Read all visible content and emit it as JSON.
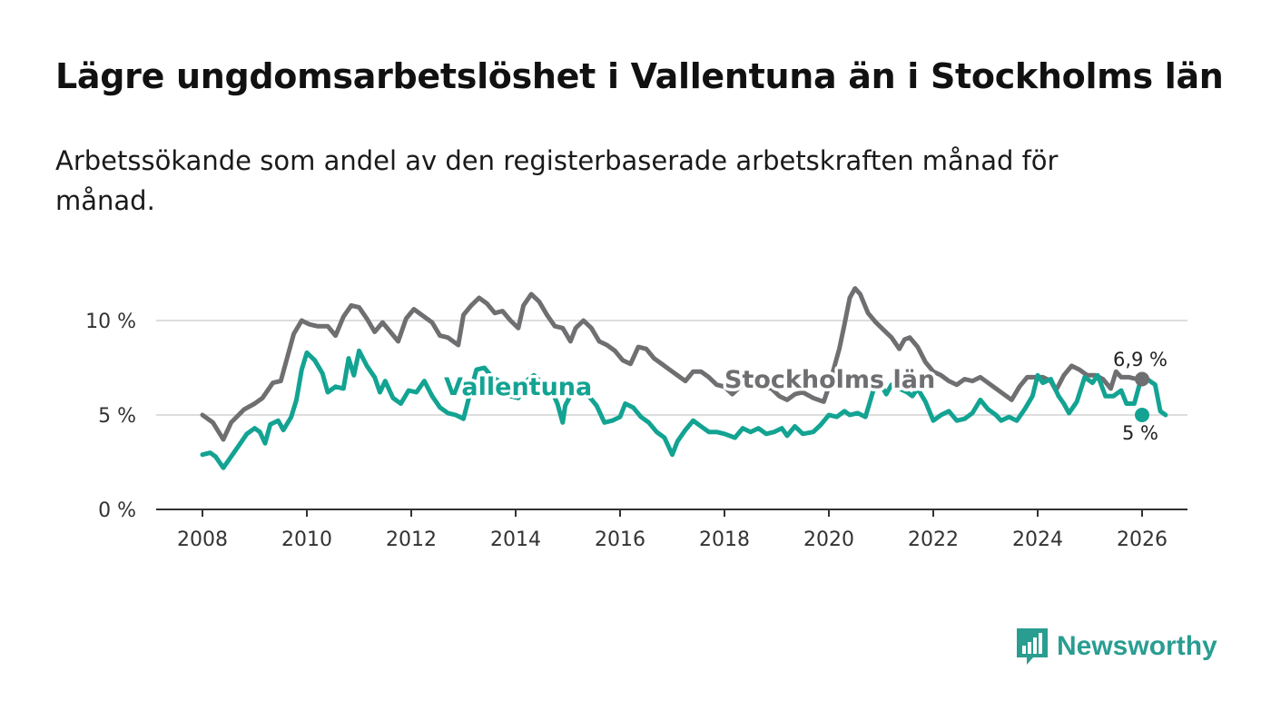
{
  "title": "Lägre ungdomsarbetslöshet i Vallentuna än i Stockholms län",
  "subtitle": "Arbetssökande som andel av den registerbaserade arbetskraften månad för månad.",
  "brand": "Newsworthy",
  "colors": {
    "stockholm": "#6f6e71",
    "vallentuna": "#13a392",
    "grid": "#dddddd",
    "axis": "#333333",
    "brand": "#2a9d91"
  },
  "chart_data": {
    "type": "line",
    "title": "Lägre ungdomsarbetslöshet i Vallentuna än i Stockholms län",
    "xlabel": "",
    "ylabel": "",
    "xlim": [
      2007.2,
      2026.45
    ],
    "ylim": [
      0,
      12
    ],
    "yticks": [
      0,
      5,
      10
    ],
    "ytick_labels": [
      "0 %",
      "5 %",
      "10 %"
    ],
    "xticks": [
      2008,
      2010,
      2012,
      2014,
      2016,
      2018,
      2020,
      2022,
      2024,
      2026
    ],
    "xtick_labels": [
      "2008",
      "2010",
      "2012",
      "2014",
      "2016",
      "2018",
      "2020",
      "2022",
      "2024",
      "2026"
    ],
    "series": [
      {
        "name": "Stockholms län",
        "label": "Stockholms län",
        "end_label": "6,9 %",
        "points": [
          [
            2008.0,
            5.0
          ],
          [
            2008.2,
            4.6
          ],
          [
            2008.4,
            3.7
          ],
          [
            2008.55,
            4.6
          ],
          [
            2008.8,
            5.3
          ],
          [
            2009.0,
            5.6
          ],
          [
            2009.15,
            5.9
          ],
          [
            2009.35,
            6.7
          ],
          [
            2009.5,
            6.8
          ],
          [
            2009.6,
            7.8
          ],
          [
            2009.75,
            9.3
          ],
          [
            2009.9,
            10.0
          ],
          [
            2010.05,
            9.8
          ],
          [
            2010.2,
            9.7
          ],
          [
            2010.4,
            9.7
          ],
          [
            2010.55,
            9.2
          ],
          [
            2010.7,
            10.2
          ],
          [
            2010.85,
            10.8
          ],
          [
            2011.0,
            10.7
          ],
          [
            2011.15,
            10.1
          ],
          [
            2011.3,
            9.4
          ],
          [
            2011.45,
            9.9
          ],
          [
            2011.6,
            9.4
          ],
          [
            2011.75,
            8.9
          ],
          [
            2011.9,
            10.1
          ],
          [
            2012.05,
            10.6
          ],
          [
            2012.2,
            10.3
          ],
          [
            2012.4,
            9.9
          ],
          [
            2012.55,
            9.2
          ],
          [
            2012.7,
            9.1
          ],
          [
            2012.9,
            8.7
          ],
          [
            2013.0,
            10.3
          ],
          [
            2013.15,
            10.8
          ],
          [
            2013.3,
            11.2
          ],
          [
            2013.45,
            10.9
          ],
          [
            2013.6,
            10.4
          ],
          [
            2013.75,
            10.5
          ],
          [
            2013.9,
            10.0
          ],
          [
            2014.05,
            9.6
          ],
          [
            2014.15,
            10.8
          ],
          [
            2014.3,
            11.4
          ],
          [
            2014.45,
            11.0
          ],
          [
            2014.6,
            10.3
          ],
          [
            2014.75,
            9.7
          ],
          [
            2014.9,
            9.6
          ],
          [
            2015.05,
            8.9
          ],
          [
            2015.15,
            9.6
          ],
          [
            2015.3,
            10.0
          ],
          [
            2015.45,
            9.6
          ],
          [
            2015.6,
            8.9
          ],
          [
            2015.75,
            8.7
          ],
          [
            2015.9,
            8.4
          ],
          [
            2016.05,
            7.9
          ],
          [
            2016.2,
            7.7
          ],
          [
            2016.35,
            8.6
          ],
          [
            2016.5,
            8.5
          ],
          [
            2016.65,
            8.0
          ],
          [
            2016.8,
            7.7
          ],
          [
            2016.95,
            7.4
          ],
          [
            2017.1,
            7.1
          ],
          [
            2017.25,
            6.8
          ],
          [
            2017.4,
            7.3
          ],
          [
            2017.55,
            7.3
          ],
          [
            2017.7,
            7.0
          ],
          [
            2017.85,
            6.6
          ],
          [
            2018.0,
            6.5
          ],
          [
            2018.15,
            6.1
          ],
          [
            2018.3,
            6.5
          ],
          [
            2018.45,
            6.9
          ],
          [
            2018.6,
            6.8
          ],
          [
            2018.75,
            6.5
          ],
          [
            2018.9,
            6.4
          ],
          [
            2019.05,
            6.0
          ],
          [
            2019.2,
            5.8
          ],
          [
            2019.35,
            6.1
          ],
          [
            2019.5,
            6.2
          ],
          [
            2019.7,
            5.9
          ],
          [
            2019.9,
            5.7
          ],
          [
            2020.0,
            6.5
          ],
          [
            2020.1,
            7.5
          ],
          [
            2020.2,
            8.5
          ],
          [
            2020.3,
            9.8
          ],
          [
            2020.4,
            11.2
          ],
          [
            2020.5,
            11.7
          ],
          [
            2020.6,
            11.4
          ],
          [
            2020.75,
            10.4
          ],
          [
            2020.9,
            9.9
          ],
          [
            2021.05,
            9.5
          ],
          [
            2021.2,
            9.1
          ],
          [
            2021.35,
            8.5
          ],
          [
            2021.45,
            9.0
          ],
          [
            2021.55,
            9.1
          ],
          [
            2021.7,
            8.6
          ],
          [
            2021.85,
            7.8
          ],
          [
            2022.0,
            7.3
          ],
          [
            2022.15,
            7.1
          ],
          [
            2022.3,
            6.8
          ],
          [
            2022.45,
            6.6
          ],
          [
            2022.6,
            6.9
          ],
          [
            2022.75,
            6.8
          ],
          [
            2022.9,
            7.0
          ],
          [
            2023.05,
            6.7
          ],
          [
            2023.2,
            6.4
          ],
          [
            2023.35,
            6.1
          ],
          [
            2023.5,
            5.8
          ],
          [
            2023.65,
            6.5
          ],
          [
            2023.8,
            7.0
          ],
          [
            2023.95,
            7.0
          ],
          [
            2024.1,
            7.0
          ],
          [
            2024.25,
            6.8
          ],
          [
            2024.35,
            6.3
          ],
          [
            2024.5,
            7.1
          ],
          [
            2024.65,
            7.6
          ],
          [
            2024.8,
            7.4
          ],
          [
            2024.95,
            7.1
          ],
          [
            2025.1,
            7.1
          ],
          [
            2025.25,
            6.9
          ],
          [
            2025.4,
            6.4
          ],
          [
            2025.5,
            7.3
          ],
          [
            2025.6,
            7.0
          ],
          [
            2025.75,
            7.0
          ],
          [
            2025.9,
            6.9
          ],
          [
            2026.0,
            6.9
          ]
        ]
      },
      {
        "name": "Vallentuna",
        "label": "Vallentuna",
        "end_label": "5 %",
        "points": [
          [
            2008.0,
            2.9
          ],
          [
            2008.15,
            3.0
          ],
          [
            2008.25,
            2.8
          ],
          [
            2008.4,
            2.2
          ],
          [
            2008.55,
            2.8
          ],
          [
            2008.7,
            3.4
          ],
          [
            2008.85,
            4.0
          ],
          [
            2009.0,
            4.3
          ],
          [
            2009.1,
            4.1
          ],
          [
            2009.2,
            3.5
          ],
          [
            2009.3,
            4.5
          ],
          [
            2009.45,
            4.7
          ],
          [
            2009.55,
            4.2
          ],
          [
            2009.7,
            4.9
          ],
          [
            2009.8,
            5.8
          ],
          [
            2009.9,
            7.4
          ],
          [
            2010.0,
            8.3
          ],
          [
            2010.15,
            7.9
          ],
          [
            2010.3,
            7.2
          ],
          [
            2010.4,
            6.2
          ],
          [
            2010.55,
            6.5
          ],
          [
            2010.7,
            6.4
          ],
          [
            2010.8,
            8.0
          ],
          [
            2010.9,
            7.1
          ],
          [
            2011.0,
            8.4
          ],
          [
            2011.15,
            7.6
          ],
          [
            2011.3,
            7.0
          ],
          [
            2011.4,
            6.2
          ],
          [
            2011.5,
            6.8
          ],
          [
            2011.65,
            5.9
          ],
          [
            2011.8,
            5.6
          ],
          [
            2011.95,
            6.3
          ],
          [
            2012.1,
            6.2
          ],
          [
            2012.25,
            6.8
          ],
          [
            2012.4,
            6.0
          ],
          [
            2012.55,
            5.4
          ],
          [
            2012.7,
            5.1
          ],
          [
            2012.85,
            5.0
          ],
          [
            2013.0,
            4.8
          ],
          [
            2013.15,
            6.4
          ],
          [
            2013.25,
            7.4
          ],
          [
            2013.4,
            7.5
          ],
          [
            2013.55,
            7.0
          ],
          [
            2013.75,
            6.7
          ],
          [
            2013.9,
            6.0
          ],
          [
            2014.05,
            5.9
          ],
          [
            2014.2,
            6.8
          ],
          [
            2014.35,
            7.1
          ],
          [
            2014.5,
            6.7
          ],
          [
            2014.65,
            6.5
          ],
          [
            2014.8,
            5.6
          ],
          [
            2014.9,
            4.6
          ],
          [
            2014.95,
            5.5
          ],
          [
            2015.1,
            6.3
          ],
          [
            2015.25,
            6.4
          ],
          [
            2015.4,
            6.0
          ],
          [
            2015.55,
            5.5
          ],
          [
            2015.7,
            4.6
          ],
          [
            2015.85,
            4.7
          ],
          [
            2016.0,
            4.9
          ],
          [
            2016.1,
            5.6
          ],
          [
            2016.25,
            5.4
          ],
          [
            2016.4,
            4.9
          ],
          [
            2016.55,
            4.6
          ],
          [
            2016.7,
            4.1
          ],
          [
            2016.85,
            3.8
          ],
          [
            2017.0,
            2.9
          ],
          [
            2017.1,
            3.6
          ],
          [
            2017.25,
            4.2
          ],
          [
            2017.4,
            4.7
          ],
          [
            2017.55,
            4.4
          ],
          [
            2017.7,
            4.1
          ],
          [
            2017.85,
            4.1
          ],
          [
            2018.0,
            4.0
          ],
          [
            2018.2,
            3.8
          ],
          [
            2018.35,
            4.3
          ],
          [
            2018.5,
            4.1
          ],
          [
            2018.65,
            4.3
          ],
          [
            2018.8,
            4.0
          ],
          [
            2018.95,
            4.1
          ],
          [
            2019.1,
            4.3
          ],
          [
            2019.2,
            3.9
          ],
          [
            2019.35,
            4.4
          ],
          [
            2019.5,
            4.0
          ],
          [
            2019.7,
            4.1
          ],
          [
            2019.85,
            4.5
          ],
          [
            2020.0,
            5.0
          ],
          [
            2020.15,
            4.9
          ],
          [
            2020.3,
            5.2
          ],
          [
            2020.4,
            5.0
          ],
          [
            2020.55,
            5.1
          ],
          [
            2020.7,
            4.9
          ],
          [
            2020.85,
            6.3
          ],
          [
            2021.0,
            6.6
          ],
          [
            2021.1,
            6.1
          ],
          [
            2021.2,
            6.6
          ],
          [
            2021.35,
            6.4
          ],
          [
            2021.5,
            6.2
          ],
          [
            2021.6,
            6.0
          ],
          [
            2021.7,
            6.4
          ],
          [
            2021.85,
            5.7
          ],
          [
            2022.0,
            4.7
          ],
          [
            2022.15,
            5.0
          ],
          [
            2022.3,
            5.2
          ],
          [
            2022.45,
            4.7
          ],
          [
            2022.6,
            4.8
          ],
          [
            2022.75,
            5.1
          ],
          [
            2022.9,
            5.8
          ],
          [
            2023.05,
            5.3
          ],
          [
            2023.2,
            5.0
          ],
          [
            2023.3,
            4.7
          ],
          [
            2023.45,
            4.9
          ],
          [
            2023.6,
            4.7
          ],
          [
            2023.75,
            5.3
          ],
          [
            2023.9,
            6.0
          ],
          [
            2024.0,
            7.1
          ],
          [
            2024.1,
            6.7
          ],
          [
            2024.25,
            6.9
          ],
          [
            2024.4,
            6.0
          ],
          [
            2024.5,
            5.6
          ],
          [
            2024.6,
            5.1
          ],
          [
            2024.75,
            5.7
          ],
          [
            2024.9,
            7.0
          ],
          [
            2025.05,
            6.7
          ],
          [
            2025.15,
            7.1
          ],
          [
            2025.3,
            6.0
          ],
          [
            2025.45,
            6.0
          ],
          [
            2025.6,
            6.3
          ],
          [
            2025.7,
            5.6
          ],
          [
            2025.85,
            5.6
          ],
          [
            2025.95,
            6.6
          ],
          [
            2026.05,
            7.0
          ],
          [
            2026.15,
            6.8
          ],
          [
            2026.25,
            6.6
          ],
          [
            2026.35,
            5.2
          ],
          [
            2026.45,
            5.0
          ]
        ]
      }
    ]
  }
}
